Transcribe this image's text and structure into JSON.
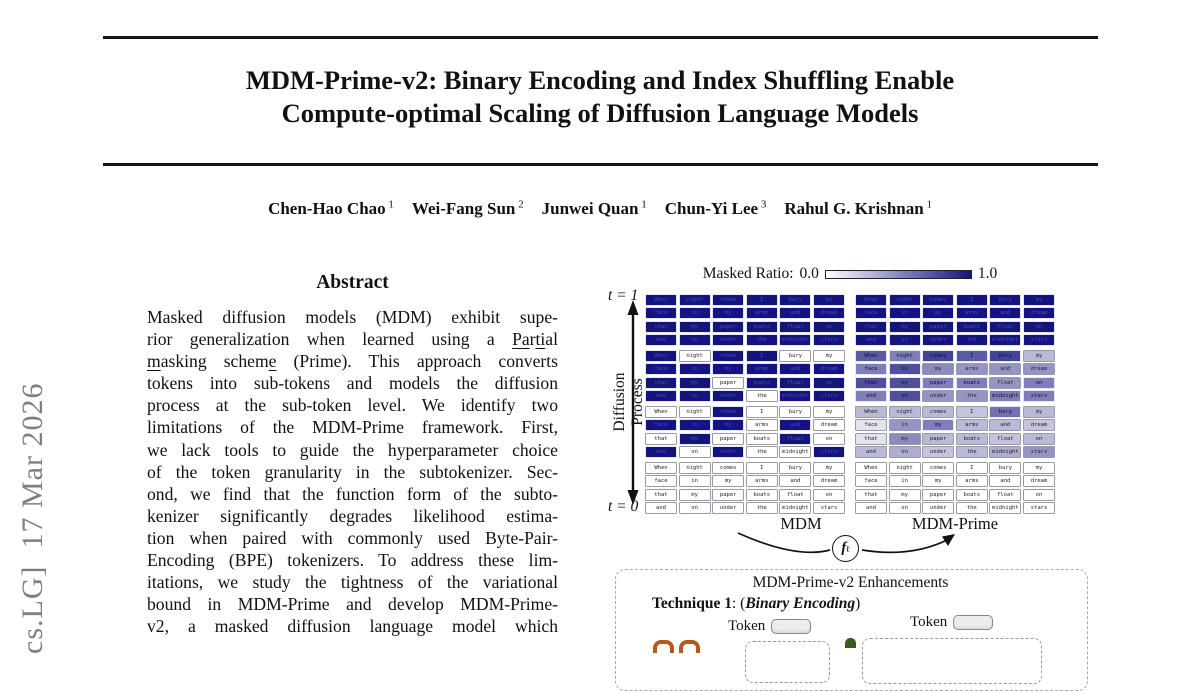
{
  "sidebar": {
    "text": "cs.LG]  17 Mar 2026"
  },
  "title": {
    "line1": "MDM-Prime-v2: Binary Encoding and Index Shuffling Enable",
    "line2": "Compute-optimal Scaling of Diffusion Language Models"
  },
  "authors": [
    {
      "name": "Chen-Hao Chao",
      "sup": "1"
    },
    {
      "name": "Wei-Fang Sun",
      "sup": "2"
    },
    {
      "name": "Junwei Quan",
      "sup": "1"
    },
    {
      "name": "Chun-Yi Lee",
      "sup": "3"
    },
    {
      "name": "Rahul G. Krishnan",
      "sup": "1"
    }
  ],
  "abstract": {
    "heading": "Abstract",
    "lines": [
      [
        {
          "t": "Masked diffusion models (MDM) exhibit supe-"
        }
      ],
      [
        {
          "t": "rior generalization when learned using a "
        },
        {
          "t": "Pa",
          "u": true
        },
        {
          "t": "r"
        },
        {
          "t": "ti",
          "u": true
        },
        {
          "t": "al"
        }
      ],
      [
        {
          "t": "m",
          "u": true
        },
        {
          "t": "asking schem"
        },
        {
          "t": "e",
          "u": true
        },
        {
          "t": " (Prime). This approach converts"
        }
      ],
      [
        {
          "t": "tokens into sub-tokens and models the diffusion"
        }
      ],
      [
        {
          "t": "process at the sub-token level. We identify two"
        }
      ],
      [
        {
          "t": "limitations of the MDM-Prime framework. First,"
        }
      ],
      [
        {
          "t": "we lack tools to guide the hyperparameter choice"
        }
      ],
      [
        {
          "t": "of the token granularity in the subtokenizer. Sec-"
        }
      ],
      [
        {
          "t": "ond, we find that the function form of the subto-"
        }
      ],
      [
        {
          "t": "kenizer significantly degrades likelihood estima-"
        }
      ],
      [
        {
          "t": "tion when paired with commonly used Byte-Pair-"
        }
      ],
      [
        {
          "t": "Encoding (BPE) tokenizers. To address these lim-"
        }
      ],
      [
        {
          "t": "itations, we study the tightness of the variational"
        }
      ],
      [
        {
          "t": "bound in MDM-Prime and develop MDM-Prime-"
        }
      ],
      [
        {
          "t": "v2, a masked diffusion language model which"
        }
      ]
    ]
  },
  "figure": {
    "colorbar": {
      "label": "Masked Ratio:",
      "min": "0.0",
      "max": "1.0"
    },
    "axis": {
      "top": "t = 1",
      "bottom": "t = 0",
      "label": "Diffusion Process"
    },
    "words": [
      [
        "When",
        "night",
        "comes",
        "I",
        "bury",
        "my"
      ],
      [
        "face",
        "in",
        "my",
        "arms",
        "and",
        "dream"
      ],
      [
        "that",
        "my",
        "paper",
        "boats",
        "float",
        "on"
      ],
      [
        "and",
        "on",
        "under",
        "the",
        "midnight",
        "stars"
      ]
    ],
    "mdm": {
      "label": "MDM",
      "levels": [
        [
          [
            1,
            1,
            1,
            1,
            1,
            1
          ],
          [
            1,
            1,
            1,
            1,
            1,
            1
          ],
          [
            1,
            1,
            1,
            1,
            1,
            1
          ],
          [
            1,
            1,
            1,
            1,
            1,
            1
          ]
        ],
        [
          [
            1,
            0,
            1,
            1,
            0,
            0
          ],
          [
            1,
            1,
            1,
            1,
            1,
            1
          ],
          [
            1,
            1,
            0,
            1,
            1,
            1
          ],
          [
            1,
            1,
            1,
            0,
            1,
            1
          ]
        ],
        [
          [
            0,
            0,
            1,
            0,
            0,
            0
          ],
          [
            1,
            1,
            1,
            0,
            1,
            0
          ],
          [
            0,
            1,
            0,
            0,
            1,
            0
          ],
          [
            1,
            0,
            1,
            0,
            0,
            1
          ]
        ],
        [
          [
            0,
            0,
            0,
            0,
            0,
            0
          ],
          [
            0,
            0,
            0,
            0,
            0,
            0
          ],
          [
            0,
            0,
            0,
            0,
            0,
            0
          ],
          [
            0,
            0,
            0,
            0,
            0,
            0
          ]
        ]
      ]
    },
    "prime": {
      "label": "MDM-Prime",
      "levels": [
        [
          [
            1,
            1,
            1,
            1,
            1,
            1
          ],
          [
            1,
            1,
            1,
            1,
            1,
            1
          ],
          [
            1,
            1,
            1,
            1,
            1,
            1
          ],
          [
            1,
            1,
            1,
            1,
            1,
            1
          ]
        ],
        [
          [
            0.7,
            0.55,
            0.8,
            0.7,
            0.8,
            0.3
          ],
          [
            0.55,
            0.75,
            0.5,
            0.45,
            0.45,
            0.45
          ],
          [
            0.75,
            0.75,
            0.55,
            0.55,
            0.45,
            0.55
          ],
          [
            0.55,
            0.75,
            0.45,
            0.45,
            0.55,
            0.55
          ]
        ],
        [
          [
            0.3,
            0.3,
            0.3,
            0.25,
            0.6,
            0.3
          ],
          [
            0.12,
            0.45,
            0.55,
            0.3,
            0.3,
            0.25
          ],
          [
            0.12,
            0.5,
            0.3,
            0.3,
            0.25,
            0.3
          ],
          [
            0.3,
            0.35,
            0.25,
            0.3,
            0.35,
            0.45
          ]
        ],
        [
          [
            0,
            0,
            0,
            0,
            0,
            0
          ],
          [
            0,
            0,
            0,
            0,
            0,
            0
          ],
          [
            0,
            0,
            0,
            0,
            0,
            0
          ],
          [
            0,
            0,
            0,
            0,
            0,
            0
          ]
        ]
      ]
    },
    "f_symbol": {
      "main": "f",
      "sub": "ℓ"
    },
    "enhancements": {
      "title": "MDM-Prime-v2  Enhancements",
      "technique1_bold": "Technique 1",
      "technique1_mid": ": (",
      "technique1_italic": "Binary Encoding",
      "technique1_end": ")",
      "token_label": "Token"
    },
    "colors": {
      "mask_full": "#15157e",
      "mask_none": "#ffffff"
    }
  }
}
